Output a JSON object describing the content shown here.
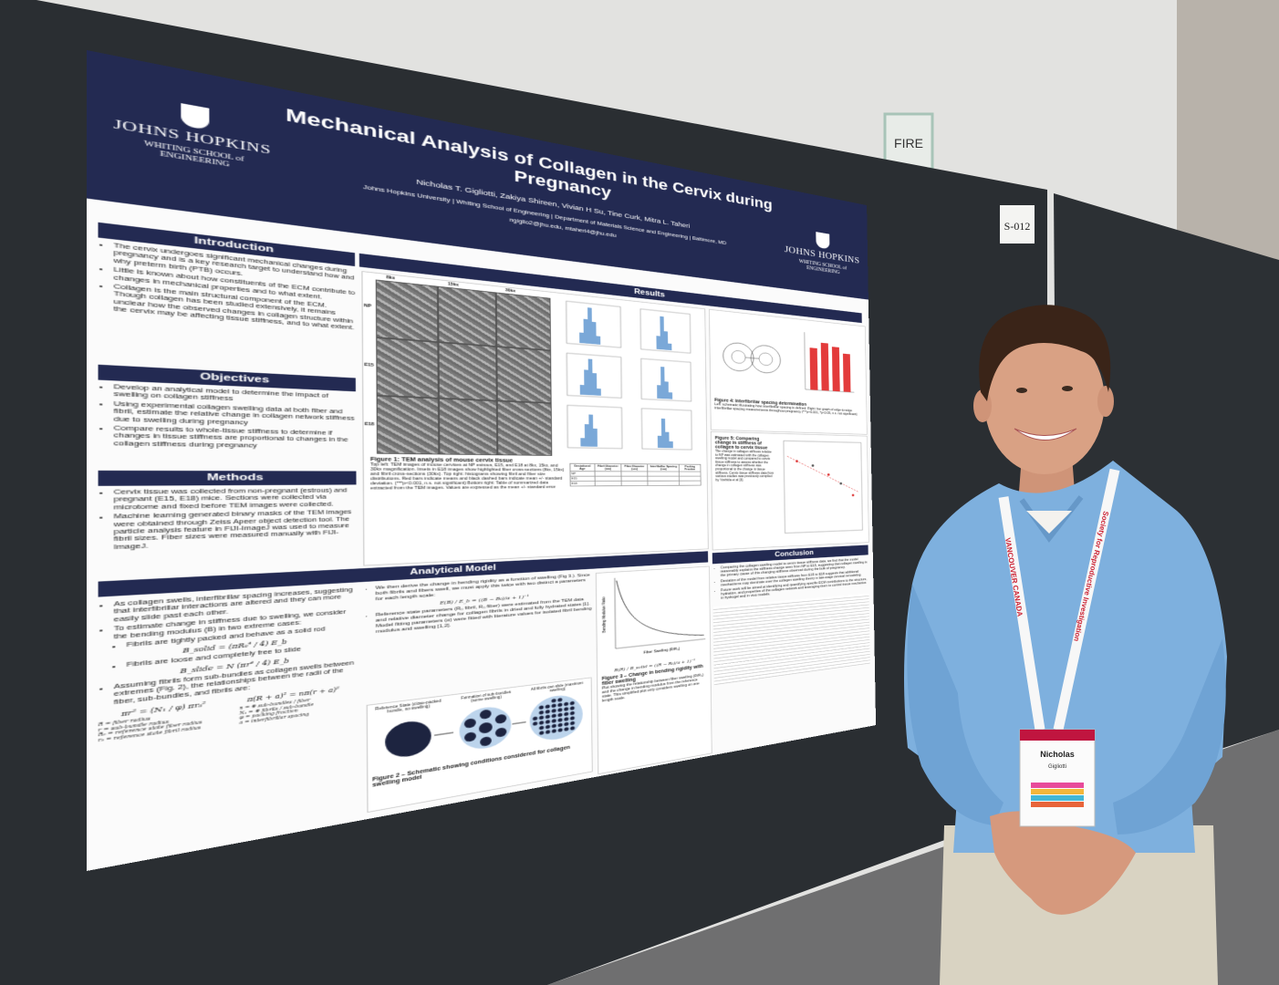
{
  "sign": {
    "fire": "FIRE",
    "board_number": "S-012"
  },
  "poster": {
    "logo_left": {
      "name": "JOHNS HOPKINS",
      "school": "WHITING SCHOOL of ENGINEERING"
    },
    "logo_right": {
      "name": "JOHNS HOPKINS",
      "school": "WHITING SCHOOL of ENGINEERING"
    },
    "title": "Mechanical Analysis of Collagen in the Cervix during Pregnancy",
    "authors": "Nicholas T. Gigliotti, Zakiya Shireen, Vivian H Su, Tine Curk, Mitra L. Taheri",
    "affiliation": "Johns Hopkins University | Whiting School of Engineering | Department of Materials Science and Engineering | Baltimore, MD",
    "email": "ngiglio2@jhu.edu, mtaheri4@jhu.edu",
    "introduction": {
      "heading": "Introduction",
      "bullets": [
        "The cervix undergoes significant mechanical changes during pregnancy and is a key research target to understand how and why preterm birth (PTB) occurs.",
        "Little is known about how constituents of the ECM contribute to changes in mechanical properties and to what extent.",
        "Collagen is the main structural component of the ECM. Though collagen has been studied extensively, it remains unclear how the observed changes in collagen structure within the cervix may be affecting tissue stiffness, and to what extent."
      ]
    },
    "objectives": {
      "heading": "Objectives",
      "bullets": [
        "Develop an analytical model to determine the impact of swelling on collagen stiffness",
        "Using experimental collagen swelling data at both fiber and fibril, estimate the relative change in collagen network stiffness due to swelling during pregnancy",
        "Compare results to whole-tissue stiffness to determine if changes in tissue stiffness are proportional to changes in the collagen stiffness during pregnancy"
      ]
    },
    "methods": {
      "heading": "Methods",
      "bullets": [
        "Cervix tissue was collected from non-pregnant (estrous) and pregnant (E15, E18) mice. Sections were collected via microtome and fixed before TEM images were collected.",
        "Machine learning generated binary masks of the TEM images were obtained through Zeiss Apeer object detection tool. The particle analysis feature in FIJI-ImageJ was used to measure fibril sizes. Fiber sizes were measured manually with FIJI-ImageJ."
      ]
    },
    "results": {
      "heading": "Results",
      "figure1": {
        "column_labels": [
          "8kx",
          "15kx",
          "30kx"
        ],
        "row_labels": [
          "NP",
          "E15",
          "E18"
        ],
        "caption": "Figure 1: TEM analysis of mouse cervix tissue",
        "text": "Top left: TEM images of mouse cervixes at NP estrous, E15, and E18 at 8kx, 15kx, and 30kx magnification. Insets in E18 images show highlighted fiber cross-sections (8kx, 15kx) and fibril cross-sections (30kx). Top right: histograms showing fibril and fiber size distributions. Red bars indicate means and black dashed bars indicate mean +/- standard deviation. (***p<0.001, n.s. not significant) Bottom right: Table of summarized data extracted from the TEM images. Values are expressed as the mean +/- standard error"
      },
      "table": {
        "header": [
          "Gestational Age",
          "Fibril Diameter (nm)",
          "Fiber Diameter (um)",
          "Interfibrillar Spacing (nm)",
          "Packing Fraction"
        ],
        "row_labels": [
          "NP",
          "E15",
          "E18"
        ]
      },
      "figure4": {
        "caption": "Figure 4: Interfibrillar spacing determination",
        "text": "Left: schematic illustrating how interfibrillar spacing is defined. Right: bar graph of edge-to-edge interfibrillar spacing measurements throughout pregnancy (***p<0.001, *p<0.05, n.s. not significant)"
      },
      "figure5": {
        "caption": "Figure 5: Comparing change in stiffness of collagen to cervix tissue",
        "text": "The change in collagen stiffness relative to NP was estimated with the collagen swelling model and compared to cervix tissue stiffness to assess whether the change in collagen stiffness was proportional to the change in tissue stiffness. Cervix tissue stiffness data from various studies was previously compiled by Yoshida et al [3]."
      }
    },
    "analytical_model": {
      "heading": "Analytical Model",
      "bullets": [
        "As collagen swells, interfibrillar spacing increases, suggesting that interfibrillar interactions are altered and they can more easily slide past each other.",
        "To estimate change in stiffness due to swelling, we consider the bending modulus (B) in two extreme cases:"
      ],
      "cases": [
        "Fibrils are tightly packed and behave as a solid rod",
        "Fibrils are loose and completely free to slide"
      ],
      "case_equations": [
        "B_solid = (πR₀⁴ / 4) E_b",
        "B_slide = N (πr⁴ / 4) E_b"
      ],
      "sub_bundles": "Assuming fibrils form sub-bundles as collagen swells between extremes (Fig. 2), the relationships between the radii of the fiber, sub-bundles, and fibrils are:",
      "radius_equations": [
        "πr² = (N₁ / φ) πr₀²",
        "π(R + a)² = nπ(r + a)²"
      ],
      "definitions": [
        "R = fiber radius",
        "r = sub-bundle radius",
        "R₀ = reference state fiber radius",
        "r₀ = reference state fibril radius",
        "n = # sub-bundles / fiber",
        "N₁ = # fibrils / sub-bundle",
        "φ = packing fraction",
        "a = interfibrillar spacing"
      ],
      "derivation": "We then derive the change in bending rigidity as a function of swelling (Fig 3.). Since both fibrils and fibers swell, we must apply this twice with two distinct a parameters for each length scale:",
      "parameters": "Reference state parameters (R₀ fibril, R₀ fiber) were estimated from the TEM data and relative diameter change for collagen fibrils in dried and fully hydrated states [1]. Model fitting parameters (α) were fitted with literature values for isolated fibril bending modulus and swelling [1,2].",
      "figure2": {
        "labels": [
          "Reference State (close-packed bundle, no swelling)",
          "Formation of sub-bundles (some swelling)",
          "All fibrils can slide (maximum swelling)"
        ],
        "caption": "Figure 2 – Schematic showing conditions considered for collagen swelling model"
      },
      "figure3": {
        "y_label": "Bending Modulus Ratio",
        "x_label": "Fiber Swelling (R/R₀)",
        "caption": "Figure 3 – Change in bending rigidity with fiber swelling",
        "text": "Plot showing the relationship between fiber swelling (R/R₀) and the change in bending modulus from the reference state. This simplified plot only considers swelling on one length scale."
      }
    },
    "conclusion": {
      "heading": "Conclusion",
      "bullets": [
        "Comparing the collagen swelling model to cervix tissue stiffness data, we find that the model reasonably explains the stiffness change seen from NP to E15, suggesting that collagen swelling is the primary cause of this changing stiffness observed during the bulk of pregnancy.",
        "Deviation of the model from relative tissue stiffness from E15 to E18 suggests that additional mechanisms may dominate over the collagen swelling theory in late-stage cervical remodeling.",
        "Future work will be aimed at identifying and quantifying specific ECM contributions to the structure, hydration, and properties of the collagen network and leveraging them to control tissue mechanics in hydrogel and in vivo models."
      ]
    }
  },
  "badge": {
    "first_name": "Nicholas",
    "last_name": "Gigliotti"
  },
  "lanyard": {
    "place": "VANCOUVER CANADA",
    "org": "Society for Reproductive Investigation"
  }
}
